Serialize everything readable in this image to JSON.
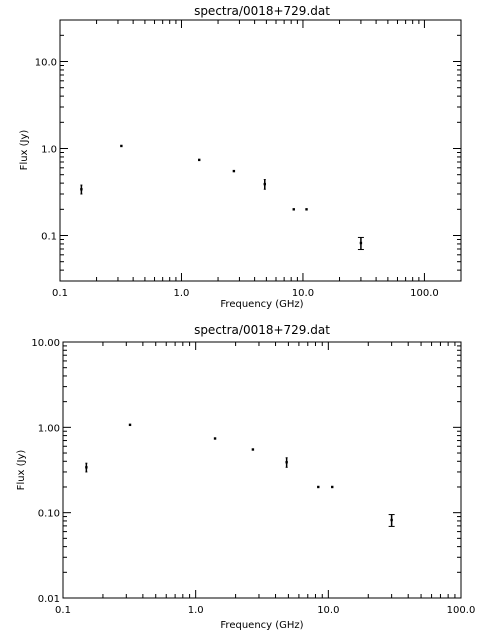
{
  "chart_data": [
    {
      "type": "scatter",
      "title": "spectra/0018+729.dat",
      "xlabel": "Frequency (GHz)",
      "ylabel": "Flux (Jy)",
      "xscale": "log",
      "yscale": "log",
      "xlim": [
        0.1,
        200
      ],
      "ylim": [
        0.03,
        30
      ],
      "xticks": [
        {
          "value": 0.1,
          "label": "0.1"
        },
        {
          "value": 1,
          "label": "1.0"
        },
        {
          "value": 10,
          "label": "10.0"
        },
        {
          "value": 100,
          "label": "100.0"
        }
      ],
      "yticks": [
        {
          "value": 0.1,
          "label": "0.1"
        },
        {
          "value": 1,
          "label": "1.0"
        },
        {
          "value": 10,
          "label": "10.0"
        }
      ],
      "grid": false,
      "points": [
        {
          "x": 0.15,
          "y": 0.34,
          "err": 0.04
        },
        {
          "x": 0.32,
          "y": 1.07,
          "err": 0.0
        },
        {
          "x": 1.4,
          "y": 0.74,
          "err": 0.0
        },
        {
          "x": 2.7,
          "y": 0.55,
          "err": 0.0
        },
        {
          "x": 4.85,
          "y": 0.39,
          "err": 0.05
        },
        {
          "x": 8.4,
          "y": 0.2,
          "err": 0.0
        },
        {
          "x": 10.7,
          "y": 0.2,
          "err": 0.0
        },
        {
          "x": 30,
          "y": 0.082,
          "err": 0.013
        }
      ]
    },
    {
      "type": "scatter",
      "title": "spectra/0018+729.dat",
      "xlabel": "Frequency (GHz)",
      "ylabel": "Flux (Jy)",
      "xscale": "log",
      "yscale": "log",
      "xlim": [
        0.1,
        100
      ],
      "ylim": [
        0.01,
        10
      ],
      "xticks": [
        {
          "value": 0.1,
          "label": "0.1"
        },
        {
          "value": 1,
          "label": "1.0"
        },
        {
          "value": 10,
          "label": "10.0"
        },
        {
          "value": 100,
          "label": "100.0"
        }
      ],
      "yticks": [
        {
          "value": 0.01,
          "label": "0.01"
        },
        {
          "value": 0.1,
          "label": "0.10"
        },
        {
          "value": 1,
          "label": "1.00"
        },
        {
          "value": 10,
          "label": "10.00"
        }
      ],
      "grid": false,
      "points": [
        {
          "x": 0.15,
          "y": 0.34,
          "err": 0.04
        },
        {
          "x": 0.32,
          "y": 1.07,
          "err": 0.0
        },
        {
          "x": 1.4,
          "y": 0.74,
          "err": 0.0
        },
        {
          "x": 2.7,
          "y": 0.55,
          "err": 0.0
        },
        {
          "x": 4.85,
          "y": 0.39,
          "err": 0.05
        },
        {
          "x": 8.4,
          "y": 0.2,
          "err": 0.0
        },
        {
          "x": 10.7,
          "y": 0.2,
          "err": 0.0
        },
        {
          "x": 30,
          "y": 0.082,
          "err": 0.013
        }
      ]
    }
  ]
}
